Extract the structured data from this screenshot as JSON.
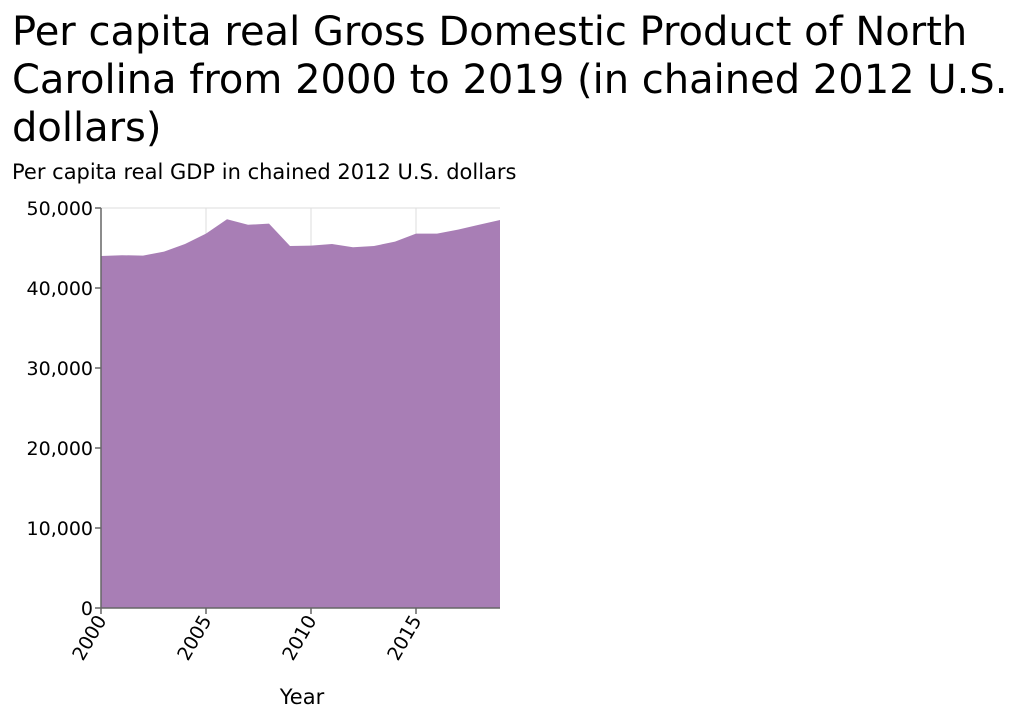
{
  "chart_data": {
    "type": "area",
    "title": "Per capita real Gross Domestic Product of North Carolina from 2000 to 2019 (in chained 2012 U.S. dollars)",
    "xlabel": "Year",
    "ylabel": "Per capita real GDP in chained 2012 U.S. dollars",
    "x": [
      2000,
      2001,
      2002,
      2003,
      2004,
      2005,
      2006,
      2007,
      2008,
      2009,
      2010,
      2011,
      2012,
      2013,
      2014,
      2015,
      2016,
      2017,
      2018,
      2019
    ],
    "values": [
      44000,
      44100,
      44050,
      44550,
      45500,
      46800,
      48600,
      47900,
      48050,
      45250,
      45300,
      45500,
      45100,
      45250,
      45800,
      46800,
      46800,
      47300,
      47900,
      48500
    ],
    "xlim": [
      2000,
      2019
    ],
    "ylim": [
      0,
      50000
    ],
    "x_ticks": [
      2000,
      2005,
      2010,
      2015
    ],
    "x_tick_labels": [
      "2000",
      "2005",
      "2010",
      "2015"
    ],
    "y_ticks": [
      0,
      10000,
      20000,
      30000,
      40000,
      50000
    ],
    "y_tick_labels": [
      "0",
      "10,000",
      "20,000",
      "30,000",
      "40,000",
      "50,000"
    ],
    "grid": true,
    "legend": "none",
    "colors": {
      "fill": "#a87eb5",
      "grid": "#dddddd",
      "axis": "#666666"
    }
  }
}
